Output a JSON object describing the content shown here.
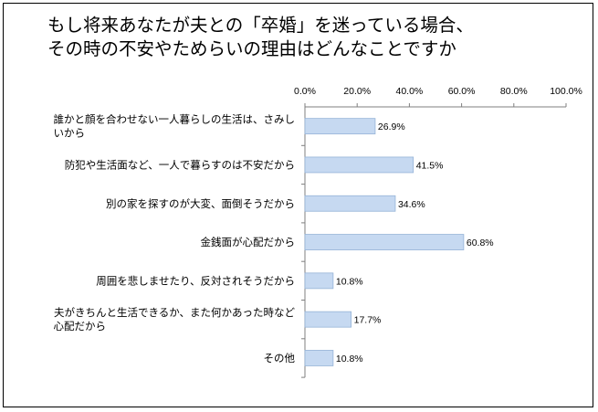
{
  "chart_data": {
    "type": "bar",
    "orientation": "horizontal",
    "title_lines": [
      "もし将来あなたが夫との「卒婚」を迷っている場合、",
      "その時の不安やためらいの理由はどんなことですか"
    ],
    "xlim": [
      0,
      100
    ],
    "ticks": [
      "0.0%",
      "20.0%",
      "40.0%",
      "60.0%",
      "80.0%",
      "100.0%"
    ],
    "tick_values": [
      0,
      20,
      40,
      60,
      80,
      100
    ],
    "categories": [
      [
        "誰かと顔を合わせない一人暮らしの生活は、さみし",
        "いから"
      ],
      [
        "防犯や生活面など、一人で暮らすのは不安だから"
      ],
      [
        "別の家を探すのが大変、面倒そうだから"
      ],
      [
        "金銭面が心配だから"
      ],
      [
        "周囲を悲しませたり、反対されそうだから"
      ],
      [
        "夫がきちんと生活できるか、また何かあった時など",
        "心配だから"
      ],
      [
        "その他"
      ]
    ],
    "values": [
      26.9,
      41.5,
      34.6,
      60.8,
      10.8,
      17.7,
      10.8
    ],
    "value_labels": [
      "26.9%",
      "41.5%",
      "34.6%",
      "60.8%",
      "10.8%",
      "17.7%",
      "10.8%"
    ],
    "bar_color": "#c6d9f1",
    "bar_stroke": "#95b3d7",
    "grid": false,
    "legend": "none"
  }
}
